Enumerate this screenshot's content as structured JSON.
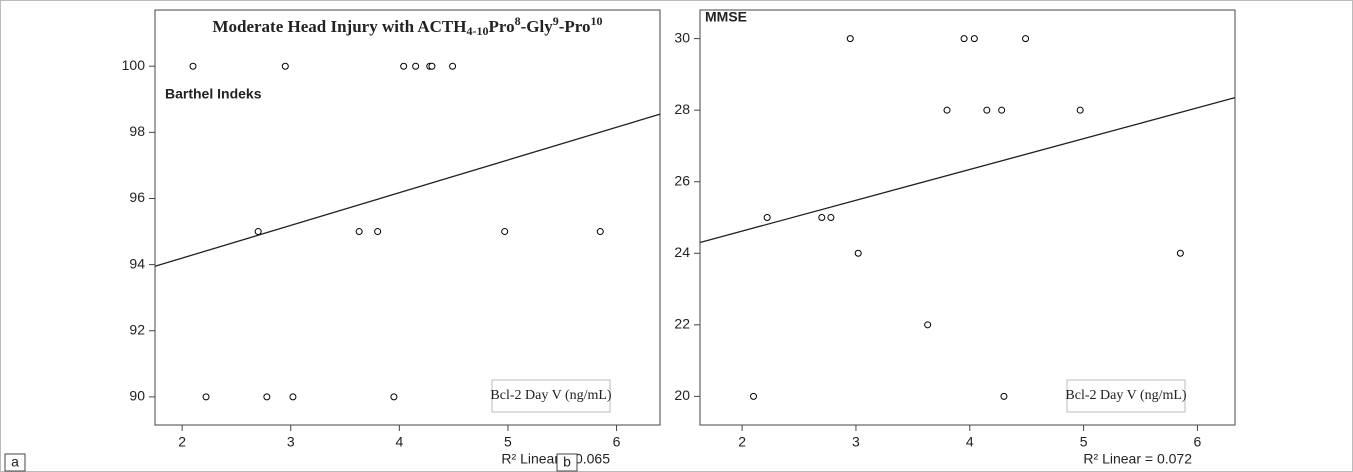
{
  "chart_data": [
    {
      "type": "scatter",
      "title": [
        {
          "text": "Moderate Head Injury with ACTH",
          "shift": "none"
        },
        {
          "text": "4-10",
          "shift": "sub"
        },
        {
          "text": "Pro",
          "shift": "none"
        },
        {
          "text": "8",
          "shift": "sup"
        },
        {
          "text": "-Gly",
          "shift": "none"
        },
        {
          "text": "9",
          "shift": "sup"
        },
        {
          "text": "-Pro",
          "shift": "none"
        },
        {
          "text": "10",
          "shift": "sup"
        }
      ],
      "y_label": "Barthel Indeks",
      "x_label": "Bcl-2 Day V (ng/mL)",
      "note": "R² Linear = 0.065",
      "panel": "a",
      "color": "#000000",
      "x": [
        2.1,
        2.95,
        4.04,
        4.15,
        4.28,
        4.3,
        4.49,
        2.7,
        3.63,
        3.8,
        4.97,
        5.85,
        2.22,
        2.78,
        3.02,
        3.95
      ],
      "values": [
        100,
        100,
        100,
        100,
        100,
        100,
        100,
        95,
        95,
        95,
        95,
        95,
        90,
        90,
        90,
        90
      ],
      "fit": {
        "x": [
          1.75,
          6.4
        ],
        "y": [
          93.95,
          98.55
        ]
      },
      "xlim": [
        1.75,
        6.4
      ],
      "ylim": [
        89.15,
        101.7
      ],
      "xticks": [
        2,
        3,
        4,
        5,
        6
      ],
      "yticks": [
        90,
        92,
        94,
        96,
        98,
        100
      ]
    },
    {
      "type": "scatter",
      "y_label": "MMSE",
      "x_label": "Bcl-2 Day V (ng/mL)",
      "note": "R² Linear = 0.072",
      "panel": "b",
      "color": "#000000",
      "x": [
        2.95,
        3.95,
        4.04,
        4.49,
        3.8,
        4.15,
        4.28,
        4.97,
        2.22,
        2.7,
        2.78,
        3.02,
        5.85,
        3.63,
        2.1,
        4.3
      ],
      "values": [
        30,
        30,
        30,
        30,
        28,
        28,
        28,
        28,
        25,
        25,
        25,
        24,
        24,
        22,
        20,
        20
      ],
      "fit": {
        "x": [
          1.63,
          6.33
        ],
        "y": [
          24.3,
          28.35
        ]
      },
      "xlim": [
        1.63,
        6.33
      ],
      "ylim": [
        19.2,
        30.8
      ],
      "xticks": [
        2,
        3,
        4,
        5,
        6
      ],
      "yticks": [
        20,
        22,
        24,
        26,
        28,
        30
      ]
    }
  ]
}
